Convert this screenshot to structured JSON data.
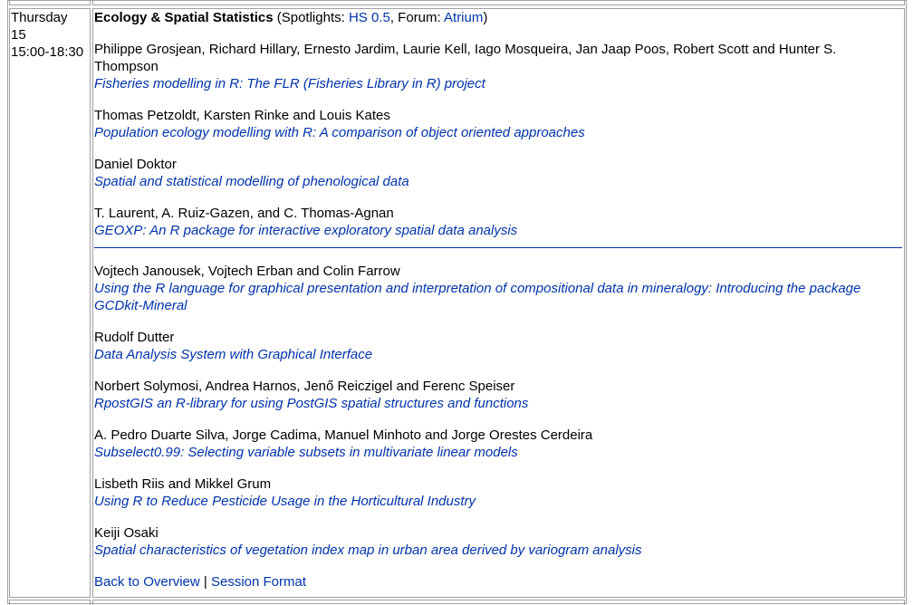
{
  "schedule": {
    "day": "Thursday",
    "date": "15",
    "time": "15:00-18:30"
  },
  "session": {
    "title": "Ecology & Spatial Statistics",
    "spotlights_label": "Spotlights:",
    "spotlights_room": "HS 0.5",
    "forum_label": "Forum:",
    "forum_room": "Atrium",
    "open_paren": " (",
    "close_paren": ")",
    "comma_sep": ", "
  },
  "talks_group1": [
    {
      "authors": "Philippe Grosjean, Richard Hillary, Ernesto Jardim, Laurie Kell, Iago Mosqueira, Jan Jaap Poos, Robert Scott and Hunter S. Thompson",
      "title": "Fisheries modelling in R: The FLR (Fisheries Library in R) project"
    },
    {
      "authors": "Thomas Petzoldt, Karsten Rinke and Louis Kates",
      "title": "Population ecology modelling with R: A comparison of object oriented approaches"
    },
    {
      "authors": "Daniel Doktor",
      "title": "Spatial and statistical modelling of phenological data"
    },
    {
      "authors": "T. Laurent, A. Ruiz-Gazen, and C. Thomas-Agnan",
      "title": "GEOXP: An R package for interactive exploratory spatial data analysis"
    }
  ],
  "talks_group2": [
    {
      "authors": "Vojtech Janousek, Vojtech Erban and Colin Farrow",
      "title": "Using the R language for graphical presentation and interpretation of compositional data in mineralogy: Introducing the package GCDkit-Mineral"
    },
    {
      "authors": "Rudolf Dutter",
      "title": "Data Analysis System with Graphical Interface"
    },
    {
      "authors": "Norbert Solymosi, Andrea Harnos, Jenő Reiczigel and Ferenc Speiser",
      "title": "RpostGIS an R-library for using PostGIS spatial structures and functions"
    },
    {
      "authors": "A. Pedro Duarte Silva, Jorge Cadima, Manuel Minhoto and Jorge Orestes Cerdeira",
      "title": "Subselect0.99: Selecting variable subsets in multivariate linear models"
    },
    {
      "authors": "Lisbeth Riis and Mikkel Grum",
      "title": "Using R to Reduce Pesticide Usage in the Horticultural Industry"
    },
    {
      "authors": "Keiji Osaki",
      "title": "Spatial characteristics of vegetation index map in urban area derived by variogram analysis"
    }
  ],
  "footer": {
    "back_link": "Back to Overview",
    "separator": "|",
    "format_link": "Session Format"
  },
  "colors": {
    "link": "#0033aa",
    "border": "#a0a0a0",
    "text": "#000000"
  }
}
